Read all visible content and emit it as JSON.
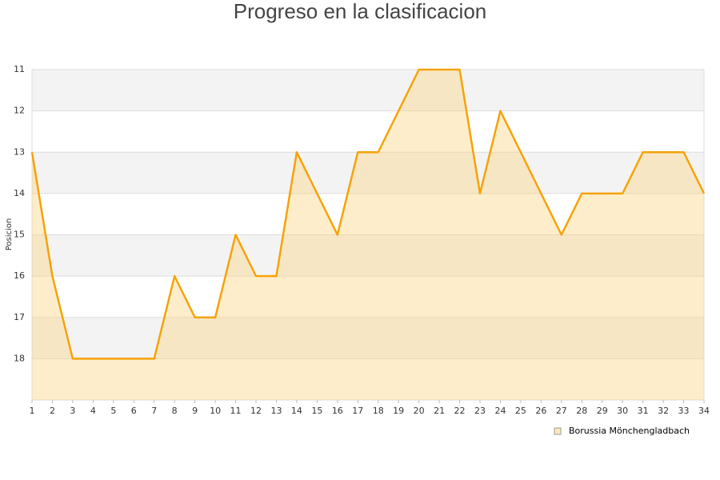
{
  "chart_data": {
    "type": "area-line",
    "title": "Progreso en la clasificacion",
    "y_label": "Posicion",
    "x": [
      1,
      2,
      3,
      4,
      5,
      6,
      7,
      8,
      9,
      10,
      11,
      12,
      13,
      14,
      15,
      16,
      17,
      18,
      19,
      20,
      21,
      22,
      23,
      24,
      25,
      26,
      27,
      28,
      29,
      30,
      31,
      32,
      33,
      34
    ],
    "series": [
      {
        "name": "Borussia Mönchengladbach",
        "color": "#f5a30a",
        "fill": "#fcd27a",
        "values": [
          13,
          16,
          18,
          18,
          18,
          18,
          18,
          16,
          17,
          17,
          15,
          16,
          16,
          13,
          14,
          15,
          13,
          13,
          12,
          11,
          11,
          11,
          14,
          12,
          13,
          14,
          15,
          14,
          14,
          14,
          13,
          13,
          13,
          14
        ]
      }
    ],
    "xlim": [
      1,
      34
    ],
    "xticks": [
      1,
      2,
      3,
      4,
      5,
      6,
      7,
      8,
      9,
      10,
      11,
      12,
      13,
      14,
      15,
      16,
      17,
      18,
      19,
      20,
      21,
      22,
      23,
      24,
      25,
      26,
      27,
      28,
      29,
      30,
      31,
      32,
      33,
      34
    ],
    "ylim": [
      19,
      11
    ],
    "yticks": [
      11,
      12,
      13,
      14,
      15,
      16,
      17,
      18
    ],
    "grid": true,
    "legend": "bottom-right"
  }
}
